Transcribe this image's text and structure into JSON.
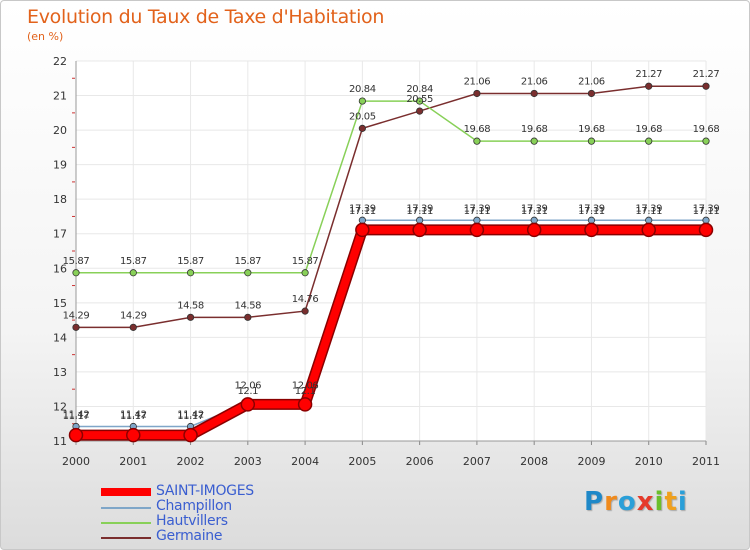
{
  "title": "Evolution du Taux de Taxe d'Habitation",
  "subtitle": "(en %)",
  "logo": {
    "letters": [
      "P",
      "r",
      "o",
      "x",
      "i",
      "t",
      "i"
    ],
    "colors": [
      "#1e88c8",
      "#f08a1c",
      "#2a9fd8",
      "#e53a2a",
      "#6bbf2b",
      "#f0a01c",
      "#2a9fd8"
    ]
  },
  "chart_data": {
    "type": "line",
    "categories": [
      "2000",
      "2001",
      "2002",
      "2003",
      "2004",
      "2005",
      "2006",
      "2007",
      "2008",
      "2009",
      "2010",
      "2011"
    ],
    "ylim": [
      11,
      22
    ],
    "yticks": [
      "11",
      "12",
      "13",
      "14",
      "15",
      "16",
      "17",
      "18",
      "19",
      "20",
      "21",
      "22"
    ],
    "grid": true,
    "series": [
      {
        "name": "SAINT-IMOGES",
        "color": "#ff0000",
        "values": [
          11.17,
          11.17,
          11.17,
          12.06,
          12.06,
          17.11,
          17.11,
          17.11,
          17.11,
          17.11,
          17.11,
          17.11
        ],
        "labels": [
          "11.17",
          "11.17",
          "11.17",
          "12.06",
          "12.06",
          "17.11",
          "17.11",
          "17.11",
          "17.11",
          "17.11",
          "17.11",
          "17.11"
        ]
      },
      {
        "name": "Champillon",
        "color": "#7fa6c8",
        "values": [
          11.42,
          11.42,
          11.42,
          12.1,
          12.1,
          17.39,
          17.39,
          17.39,
          17.39,
          17.39,
          17.39,
          17.39
        ],
        "labels": [
          "11.42",
          "11.42",
          "11.42",
          "12.1",
          "12.1",
          "17.39",
          "17.39",
          "17.39",
          "17.39",
          "17.39",
          "17.39",
          "17.39"
        ]
      },
      {
        "name": "Hautvillers",
        "color": "#88d058",
        "values": [
          15.87,
          15.87,
          15.87,
          15.87,
          15.87,
          20.84,
          20.84,
          19.68,
          19.68,
          19.68,
          19.68,
          19.68
        ],
        "labels": [
          "15.87",
          "15.87",
          "15.87",
          "15.87",
          "15.87",
          "20.84",
          "20.84",
          "19.68",
          "19.68",
          "19.68",
          "19.68",
          "19.68"
        ]
      },
      {
        "name": "Germaine",
        "color": "#7a2e2e",
        "values": [
          14.29,
          14.29,
          14.58,
          14.58,
          14.76,
          20.05,
          20.55,
          21.06,
          21.06,
          21.06,
          21.27,
          21.27
        ],
        "labels": [
          "14.29",
          "14.29",
          "14.58",
          "14.58",
          "14.76",
          "20.05",
          "20.55",
          "21.06",
          "21.06",
          "21.06",
          "21.27",
          "21.27"
        ]
      }
    ]
  }
}
